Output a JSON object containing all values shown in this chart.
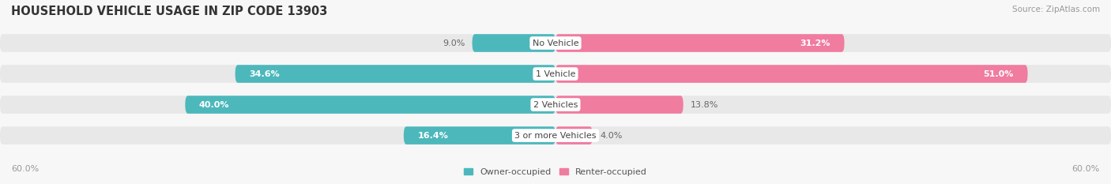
{
  "title": "HOUSEHOLD VEHICLE USAGE IN ZIP CODE 13903",
  "source": "Source: ZipAtlas.com",
  "categories": [
    "No Vehicle",
    "1 Vehicle",
    "2 Vehicles",
    "3 or more Vehicles"
  ],
  "owner_values": [
    9.0,
    34.6,
    40.0,
    16.4
  ],
  "renter_values": [
    31.2,
    51.0,
    13.8,
    4.0
  ],
  "owner_color": "#4db8bc",
  "renter_color": "#f07ca0",
  "owner_color_light": "#7dd4d6",
  "renter_color_light": "#f5a0bc",
  "axis_max": 60.0,
  "axis_label": "60.0%",
  "legend_owner": "Owner-occupied",
  "legend_renter": "Renter-occupied",
  "background_color": "#f7f7f7",
  "bar_bg_color": "#e8e8e8",
  "title_fontsize": 10.5,
  "source_fontsize": 7.5,
  "label_fontsize": 8,
  "bar_height": 0.58,
  "owner_white_threshold": 15.0,
  "renter_white_threshold": 15.0
}
